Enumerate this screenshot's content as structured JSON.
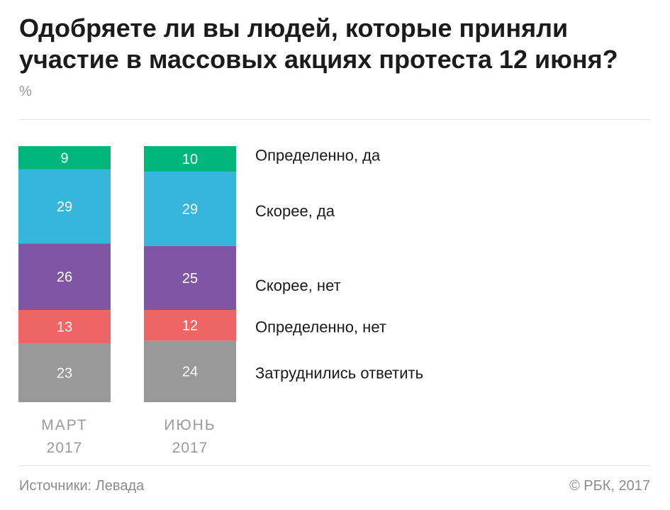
{
  "header": {
    "title": "Одобряете ли вы людей, которые приняли участие в массовых акциях протеста 12 июня?",
    "unit": "%"
  },
  "chart_data": {
    "type": "bar",
    "stacked": true,
    "orientation": "vertical",
    "categories": [
      {
        "line1": "МАРТ",
        "line2": "2017"
      },
      {
        "line1": "ИЮНЬ",
        "line2": "2017"
      }
    ],
    "series": [
      {
        "name": "Определенно, да",
        "color": "#00b67a",
        "values": [
          9,
          10
        ]
      },
      {
        "name": "Скорее, да",
        "color": "#35b6da",
        "values": [
          29,
          29
        ]
      },
      {
        "name": "Скорее, нет",
        "color": "#7f56a6",
        "values": [
          26,
          25
        ]
      },
      {
        "name": "Определенно, нет",
        "color": "#ef6566",
        "values": [
          13,
          12
        ]
      },
      {
        "name": "Затруднились ответить",
        "color": "#999999",
        "values": [
          23,
          24
        ]
      }
    ],
    "legend_placement": "right",
    "value_labels": true,
    "gridlines": false
  },
  "footer": {
    "source": "Источники: Левада",
    "copyright": "© РБК, 2017"
  }
}
